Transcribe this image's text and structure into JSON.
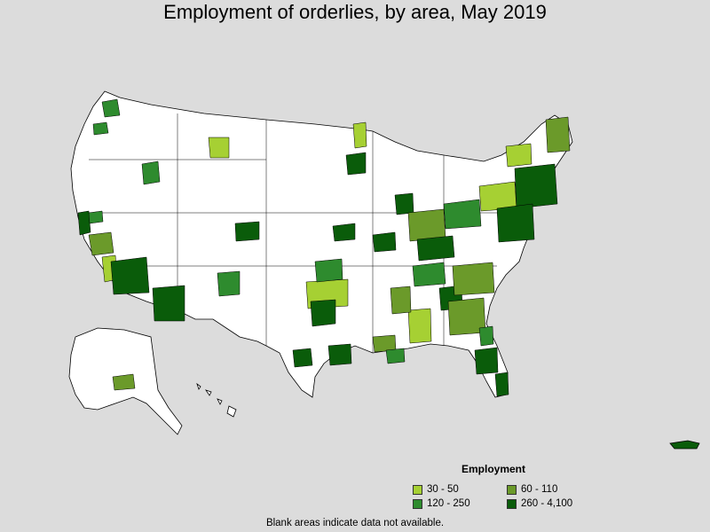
{
  "title": "Employment of orderlies, by area, May 2019",
  "legend": {
    "title": "Employment",
    "items": [
      {
        "label": "30 - 50",
        "color": "#a6d033"
      },
      {
        "label": "60 - 110",
        "color": "#6b9a2a"
      },
      {
        "label": "120 - 250",
        "color": "#2e8b2e"
      },
      {
        "label": "260 - 4,100",
        "color": "#0a5c0a"
      }
    ]
  },
  "footnote": "Blank areas indicate data not available.",
  "colors": {
    "background": "#dcdcdc",
    "land": "#ffffff",
    "border": "#000000"
  }
}
